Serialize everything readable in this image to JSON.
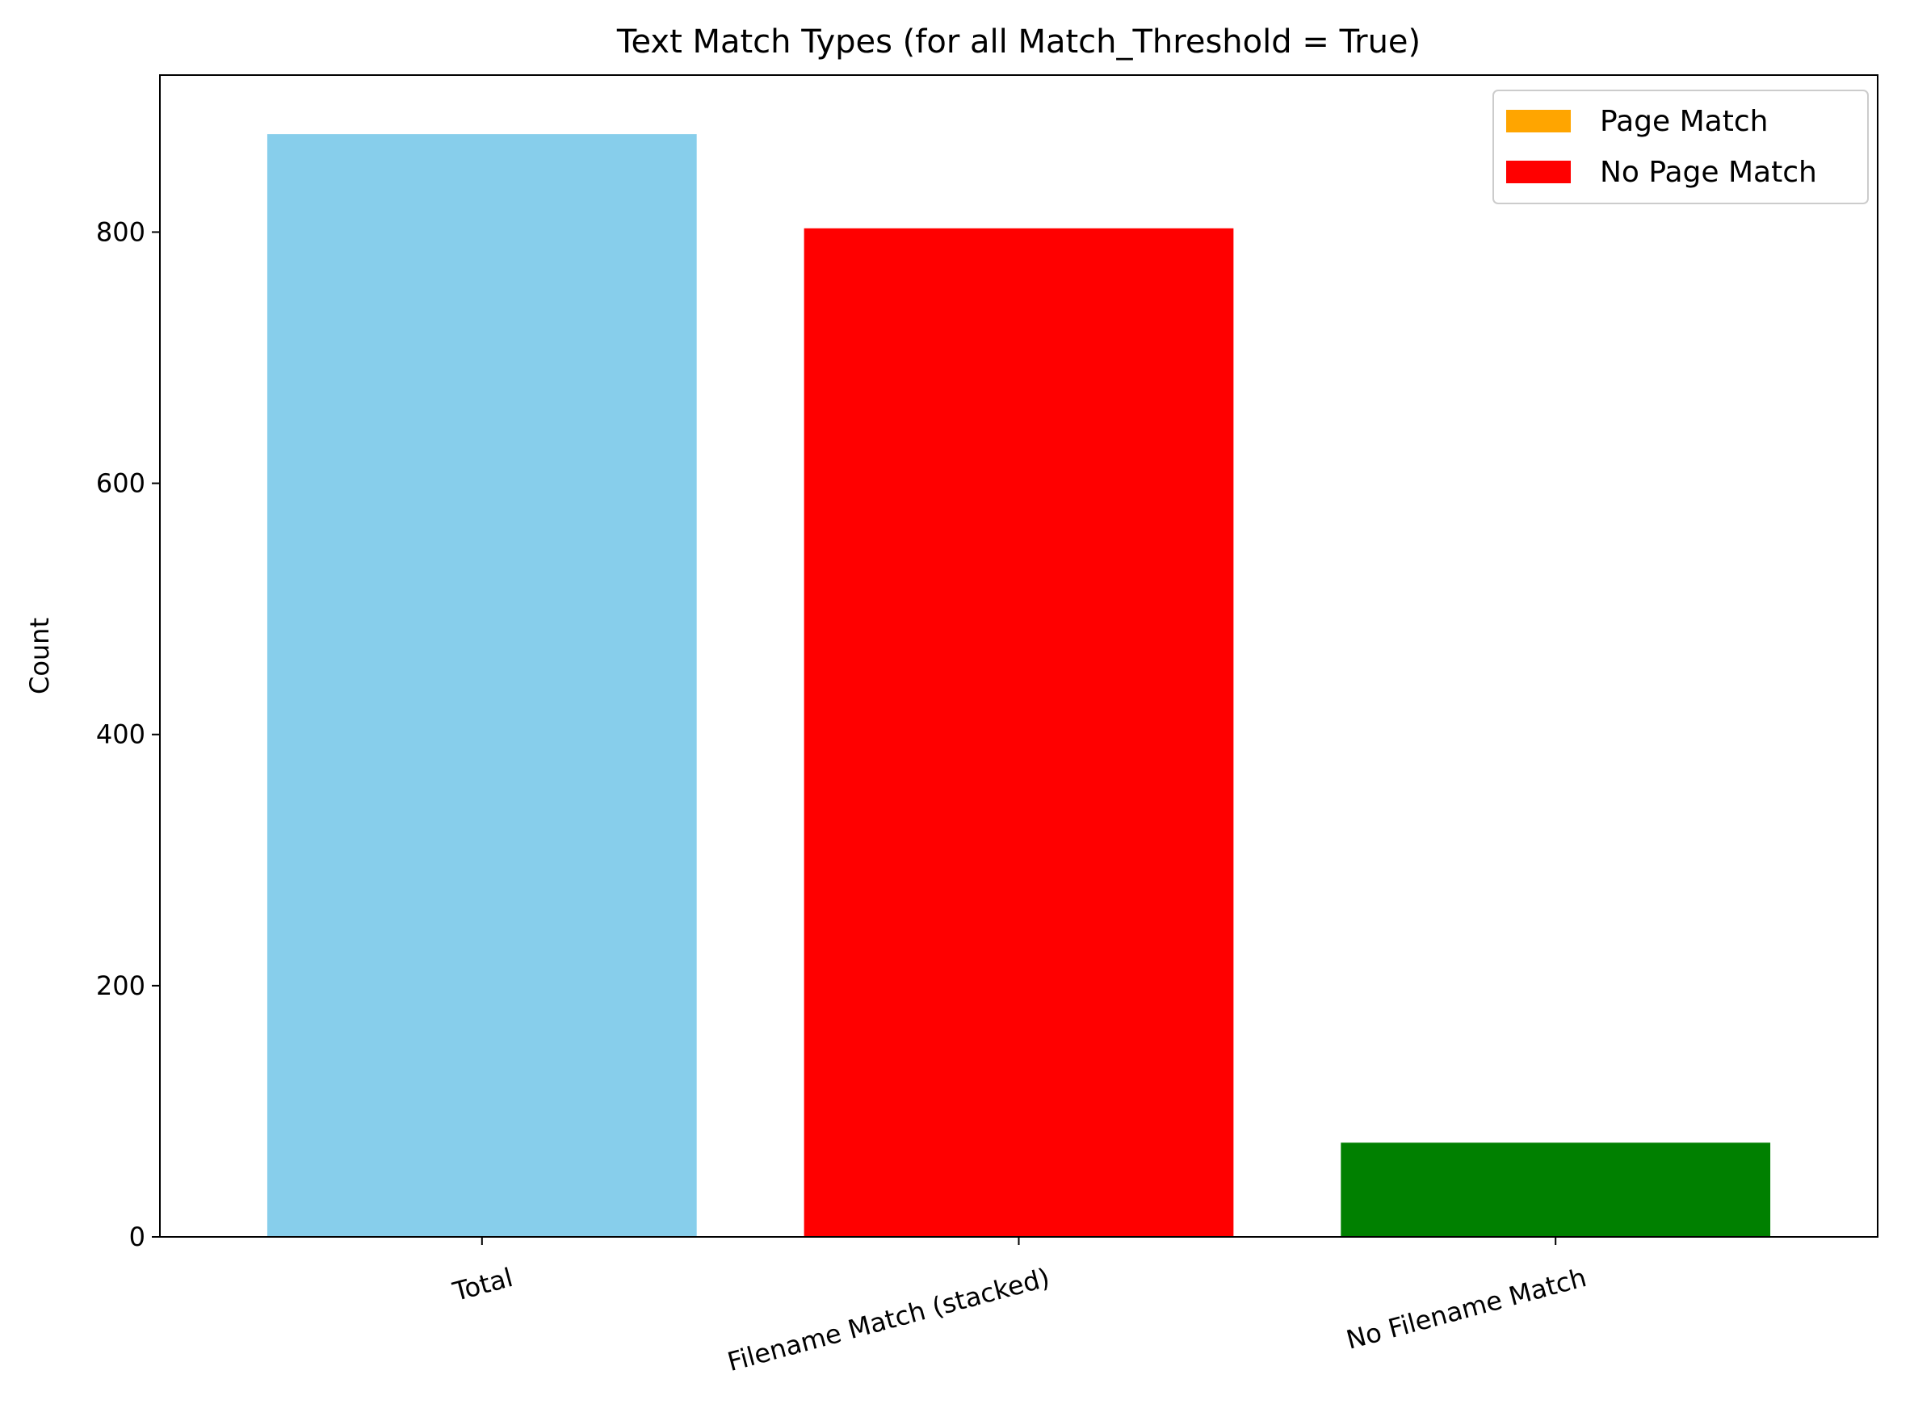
{
  "chart_data": {
    "type": "bar",
    "title": "Text Match Types (for all Match_Threshold = True)",
    "xlabel": "",
    "ylabel": "Count",
    "ylim": [
      0,
      925
    ],
    "yticks": [
      0,
      200,
      400,
      600,
      800
    ],
    "categories": [
      "Total",
      "Filename Match (stacked)",
      "No Filename Match"
    ],
    "bars": [
      {
        "category": "Total",
        "segments": [
          {
            "series": "Total",
            "value": 878,
            "color": "#87CEEB"
          }
        ]
      },
      {
        "category": "Filename Match (stacked)",
        "segments": [
          {
            "series": "No Page Match",
            "value": 803,
            "color": "#FF0000"
          },
          {
            "series": "Page Match",
            "value": 0,
            "color": "#FFA500"
          }
        ]
      },
      {
        "category": "No Filename Match",
        "segments": [
          {
            "series": "No Filename Match",
            "value": 75,
            "color": "#008000"
          }
        ]
      }
    ],
    "legend": {
      "placement": "top-right",
      "entries": [
        {
          "label": "Page Match",
          "color": "#FFA500"
        },
        {
          "label": "No Page Match",
          "color": "#FF0000"
        }
      ]
    },
    "grid": false
  }
}
